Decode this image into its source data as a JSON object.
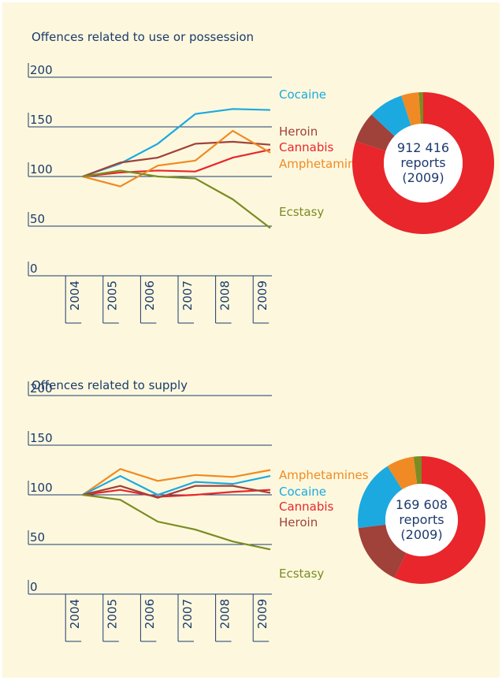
{
  "chart_data": [
    {
      "type": "line",
      "title": "Offences related to use or possession",
      "categories": [
        "2004",
        "2005",
        "2006",
        "2007",
        "2008",
        "2009"
      ],
      "ylim": [
        0,
        200
      ],
      "yticks": [
        0,
        50,
        100,
        150,
        200
      ],
      "series": [
        {
          "name": "Cocaine",
          "color": "#1ba9e0",
          "values": [
            100,
            113,
            133,
            163,
            168,
            167
          ]
        },
        {
          "name": "Heroin",
          "color": "#a0413a",
          "values": [
            100,
            114,
            119,
            133,
            135,
            132
          ]
        },
        {
          "name": "Cannabis",
          "color": "#e8262b",
          "values": [
            100,
            104,
            106,
            105,
            119,
            127
          ]
        },
        {
          "name": "Amphetamines",
          "color": "#f08a24",
          "values": [
            100,
            90,
            111,
            116,
            146,
            124
          ]
        },
        {
          "name": "Ecstasy",
          "color": "#7a8c23",
          "values": [
            100,
            106,
            100,
            98,
            77,
            48
          ]
        }
      ]
    },
    {
      "type": "pie",
      "center_text": [
        "912 416",
        "reports",
        "(2009)"
      ],
      "values": [
        80,
        7,
        8,
        4,
        1
      ],
      "colors": [
        "#e8262b",
        "#a0413a",
        "#1ba9e0",
        "#f08a24",
        "#7a8c23"
      ]
    },
    {
      "type": "line",
      "title": "Offences related to supply",
      "categories": [
        "2004",
        "2005",
        "2006",
        "2007",
        "2008",
        "2009"
      ],
      "ylim": [
        0,
        200
      ],
      "yticks": [
        0,
        50,
        100,
        150,
        200
      ],
      "series": [
        {
          "name": "Amphetamines",
          "color": "#f08a24",
          "values": [
            100,
            126,
            114,
            120,
            118,
            125
          ]
        },
        {
          "name": "Cocaine",
          "color": "#1ba9e0",
          "values": [
            100,
            119,
            100,
            113,
            111,
            119
          ]
        },
        {
          "name": "Cannabis",
          "color": "#e8262b",
          "values": [
            100,
            105,
            98,
            100,
            103,
            105
          ]
        },
        {
          "name": "Heroin",
          "color": "#a0413a",
          "values": [
            100,
            109,
            97,
            109,
            109,
            102
          ]
        },
        {
          "name": "Ecstasy",
          "color": "#7a8c23",
          "values": [
            100,
            95,
            73,
            65,
            53,
            45
          ]
        }
      ]
    },
    {
      "type": "pie",
      "center_text": [
        "169 608",
        "reports",
        "(2009)"
      ],
      "values": [
        57,
        16,
        18,
        7,
        2
      ],
      "colors": [
        "#e8262b",
        "#a0413a",
        "#1ba9e0",
        "#f08a24",
        "#7a8c23"
      ]
    }
  ]
}
